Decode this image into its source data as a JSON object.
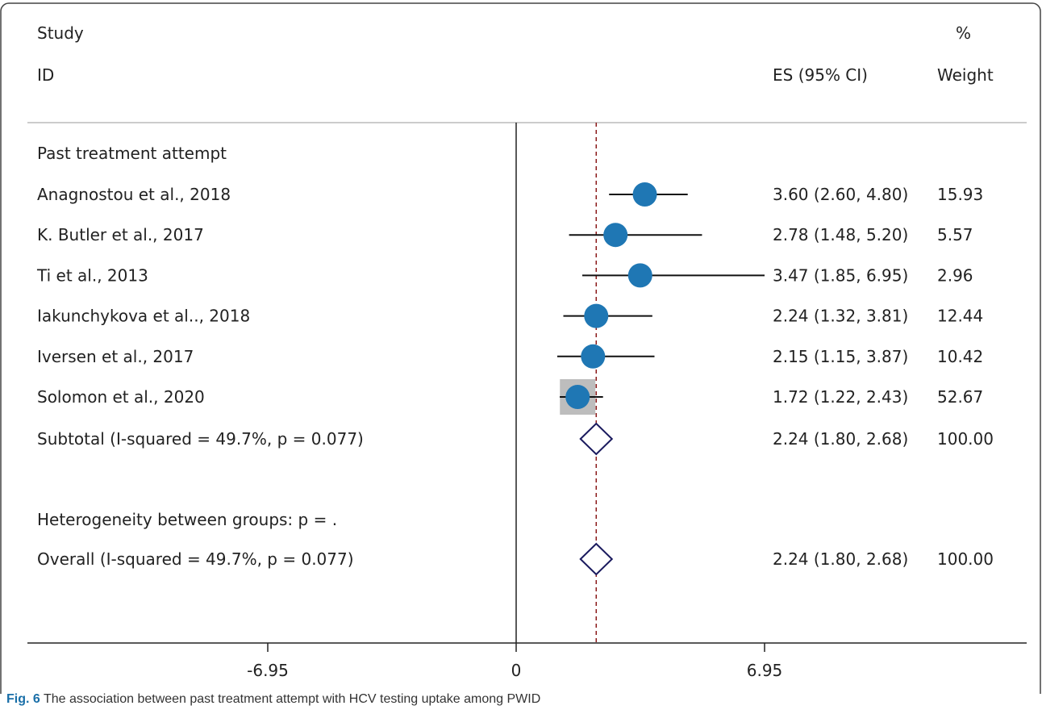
{
  "header": {
    "study": "Study",
    "id": "ID",
    "pct": "%",
    "es": "ES (95% CI)",
    "weight": "Weight"
  },
  "caption": {
    "label": "Fig. 6",
    "text": "The association between past treatment attempt with HCV testing uptake among PWID"
  },
  "colors": {
    "marker": "#1f77b4",
    "diamond": "#1a1a5e",
    "refline": "#8b1a1a",
    "weightbox": "#bdbdbd"
  },
  "chart_data": {
    "type": "forest",
    "group_label": "Past treatment attempt",
    "studies": [
      {
        "label": "Anagnostou et al., 2018",
        "es": 3.6,
        "lo": 2.6,
        "hi": 4.8,
        "es_text": "3.60 (2.60, 4.80)",
        "weight": "15.93"
      },
      {
        "label": "K. Butler et al., 2017",
        "es": 2.78,
        "lo": 1.48,
        "hi": 5.2,
        "es_text": "2.78 (1.48, 5.20)",
        "weight": "5.57"
      },
      {
        "label": "Ti et al., 2013",
        "es": 3.47,
        "lo": 1.85,
        "hi": 6.95,
        "es_text": "3.47 (1.85, 6.95)",
        "weight": "2.96"
      },
      {
        "label": "Iakunchykova et al.., 2018",
        "es": 2.24,
        "lo": 1.32,
        "hi": 3.81,
        "es_text": "2.24 (1.32, 3.81)",
        "weight": "12.44"
      },
      {
        "label": "Iversen et al., 2017",
        "es": 2.15,
        "lo": 1.15,
        "hi": 3.87,
        "es_text": "2.15 (1.15, 3.87)",
        "weight": "10.42"
      },
      {
        "label": "Solomon et al., 2020",
        "es": 1.72,
        "lo": 1.22,
        "hi": 2.43,
        "es_text": "1.72 (1.22, 2.43)",
        "weight": "52.67"
      }
    ],
    "subtotal": {
      "label": "Subtotal  (I-squared = 49.7%, p = 0.077)",
      "es": 2.24,
      "lo": 1.8,
      "hi": 2.68,
      "es_text": "2.24 (1.80, 2.68)",
      "weight": "100.00"
    },
    "heterogeneity": "Heterogeneity between groups: p = .",
    "overall": {
      "label": "Overall  (I-squared = 49.7%, p = 0.077)",
      "es": 2.24,
      "lo": 1.8,
      "hi": 2.68,
      "es_text": "2.24 (1.80, 2.68)",
      "weight": "100.00"
    },
    "xlim": [
      -6.95,
      6.95
    ],
    "xticks": [
      -6.95,
      0,
      6.95
    ],
    "xtick_labels": [
      "-6.95",
      "0",
      "6.95"
    ],
    "null_line": 0,
    "ref_line": 2.24
  }
}
